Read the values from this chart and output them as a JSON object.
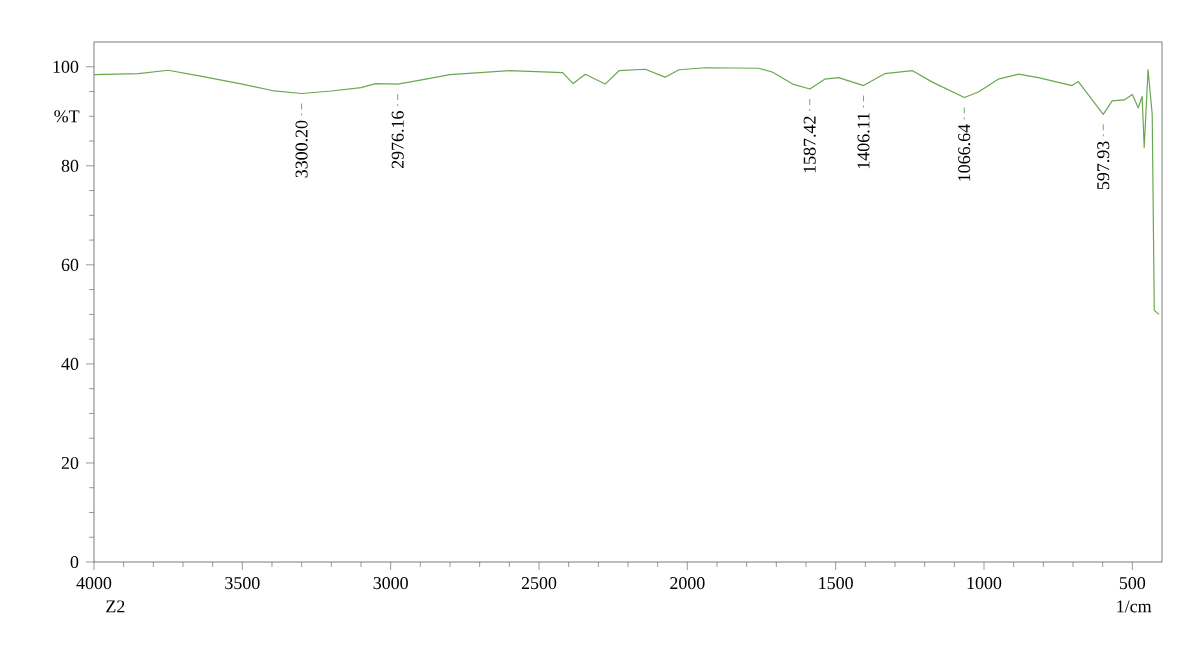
{
  "chart_data": {
    "type": "line",
    "xlabel": "1/cm",
    "ylabel": "%T",
    "xlim": [
      4000,
      400
    ],
    "ylim": [
      0,
      105
    ],
    "xticks": [
      4000,
      3500,
      3000,
      2500,
      2000,
      1500,
      1000,
      500
    ],
    "yticks": [
      0,
      20,
      40,
      60,
      80,
      100
    ],
    "grid": false,
    "marker": "none",
    "line_style": "solid",
    "series": [
      {
        "color": "#6aa84f",
        "x": [
          4000,
          3850,
          3750,
          3650,
          3500,
          3400,
          3300,
          3200,
          3100,
          3050,
          2976,
          2900,
          2800,
          2600,
          2420,
          2385,
          2344,
          2277,
          2230,
          2142,
          2075,
          2028,
          1940,
          1760,
          1712,
          1645,
          1587,
          1537,
          1490,
          1406,
          1335,
          1241,
          1174,
          1066,
          1019,
          952,
          884,
          817,
          703,
          682,
          598,
          568,
          527,
          500,
          480,
          467,
          460,
          447,
          433,
          426,
          410
        ],
        "values": [
          98.4,
          98.6,
          99.3,
          98.2,
          96.5,
          95.2,
          94.6,
          95.1,
          95.8,
          96.6,
          96.5,
          97.3,
          98.4,
          99.2,
          98.8,
          96.6,
          98.5,
          96.5,
          99.2,
          99.5,
          97.9,
          99.4,
          99.8,
          99.7,
          98.9,
          96.5,
          95.5,
          97.5,
          97.8,
          96.2,
          98.6,
          99.2,
          96.9,
          93.8,
          94.9,
          97.5,
          98.5,
          97.8,
          96.2,
          97.0,
          90.4,
          93.1,
          93.3,
          94.4,
          91.7,
          94.0,
          83.7,
          99.4,
          90.4,
          50.8,
          50.0
        ]
      }
    ],
    "annotations": [
      {
        "text": "3300.20",
        "x": 3300.2,
        "y": 94.6
      },
      {
        "text": "2976.16",
        "x": 2976.16,
        "y": 96.5
      },
      {
        "text": "1587.42",
        "x": 1587.42,
        "y": 95.5
      },
      {
        "text": "1406.11",
        "x": 1406.11,
        "y": 96.2
      },
      {
        "text": "1066.64",
        "x": 1066.64,
        "y": 93.8
      },
      {
        "text": "597.93",
        "x": 597.93,
        "y": 90.4
      },
      "Z2"
    ]
  }
}
